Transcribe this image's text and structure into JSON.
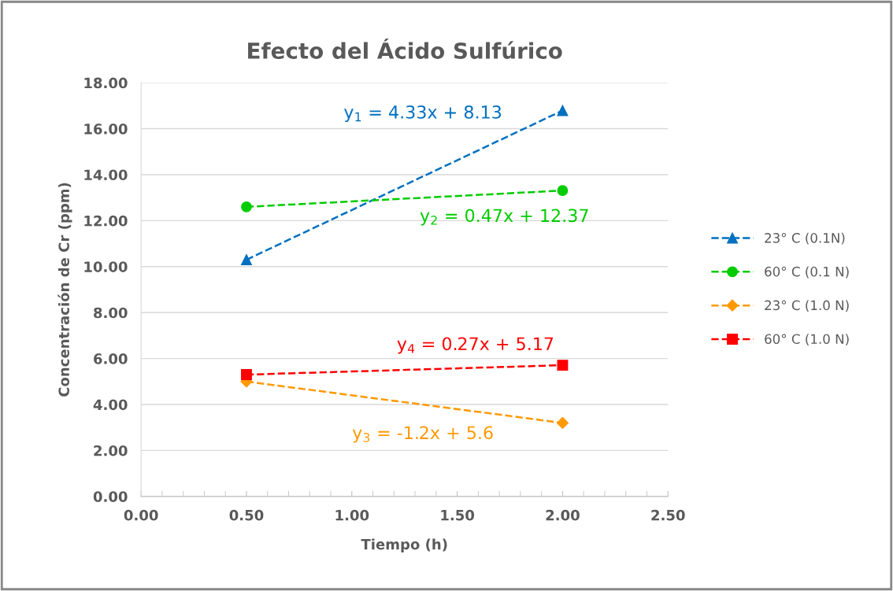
{
  "chart_data": {
    "type": "line",
    "title": "Efecto del Ácido Sulfúrico",
    "xlabel": "Tiempo (h)",
    "ylabel": "Concentración de Cr (ppm)",
    "x": [
      0.5,
      2.0
    ],
    "series": [
      {
        "name": "23° C (0.1N)",
        "color": "#0070c0",
        "marker": "triangle",
        "values": [
          10.3,
          16.79
        ]
      },
      {
        "name": "60° C (0.1 N)",
        "color": "#00cc00",
        "marker": "circle",
        "values": [
          12.6,
          13.31
        ]
      },
      {
        "name": "23° C (1.0 N)",
        "color": "#ff9900",
        "marker": "diamond",
        "values": [
          5.0,
          3.2
        ]
      },
      {
        "name": "60° C (1.0 N)",
        "color": "#ff0000",
        "marker": "square",
        "values": [
          5.3,
          5.71
        ]
      }
    ],
    "annotations": [
      "y$_{1}$ = 4.33x + 8.13",
      "y$_{2}$ = 0.47x + 12.37",
      "y$_{3}$ = -1.2x + 5.6",
      "y$_{4}$ = 0.27x + 5.17"
    ],
    "xlim": [
      0,
      2.5
    ],
    "xticks": [
      {
        "value": 0,
        "label": "0.00"
      },
      {
        "value": 0.5,
        "label": "0.50"
      },
      {
        "value": 1,
        "label": "1.00"
      },
      {
        "value": 1.5,
        "label": "1.50"
      },
      {
        "value": 2,
        "label": "2.00"
      },
      {
        "value": 2.5,
        "label": "2.50"
      }
    ],
    "ylim": [
      0,
      18
    ],
    "yticks": [
      {
        "value": 0,
        "label": "0.00"
      },
      {
        "value": 2,
        "label": "2.00"
      },
      {
        "value": 4,
        "label": "4.00"
      },
      {
        "value": 6,
        "label": "6.00"
      },
      {
        "value": 8,
        "label": "8.00"
      },
      {
        "value": 10,
        "label": "10.00"
      },
      {
        "value": 12,
        "label": "12.00"
      },
      {
        "value": 14,
        "label": "14.00"
      },
      {
        "value": 16,
        "label": "16.00"
      },
      {
        "value": 18,
        "label": "18.00"
      }
    ],
    "grid": "y",
    "legend": "right",
    "line_style": "dashed"
  }
}
